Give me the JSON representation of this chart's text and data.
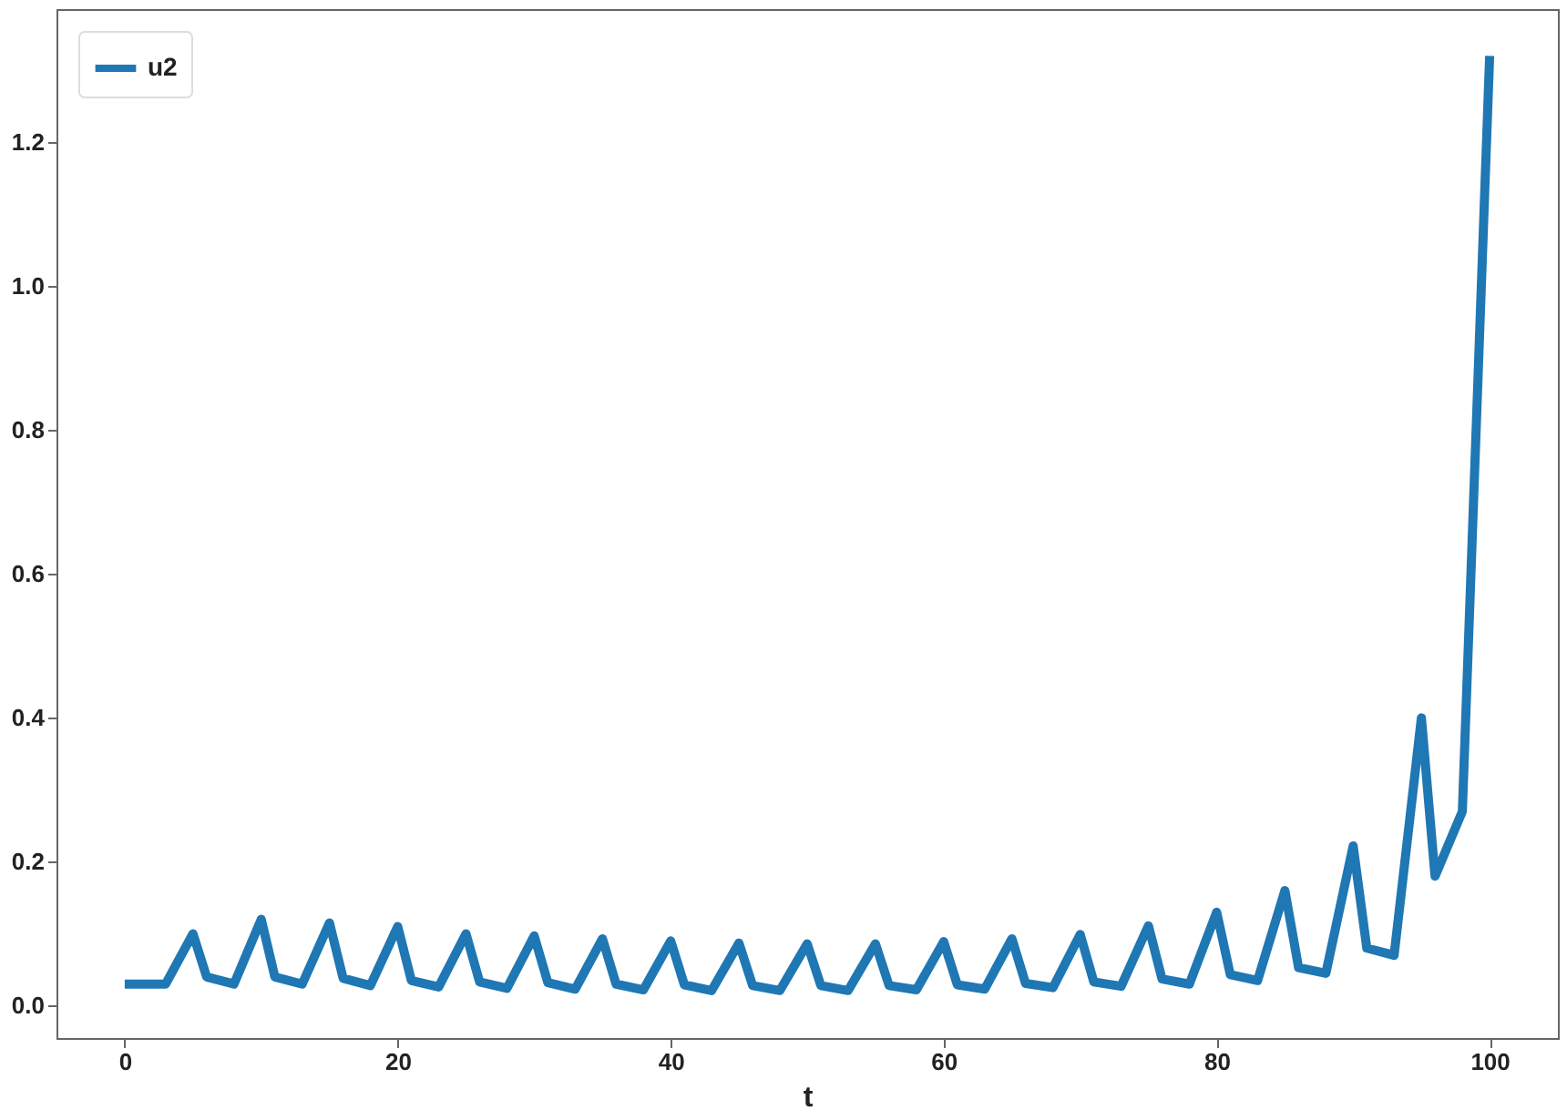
{
  "chart_data": {
    "type": "line",
    "xlabel": "t",
    "legend": "top left",
    "grid": false,
    "marker": "none",
    "line_style": "solid",
    "xlim": [
      -5,
      105
    ],
    "xticks": [
      0,
      20,
      40,
      60,
      80,
      100
    ],
    "ylim": [
      -0.045,
      1.385
    ],
    "yticks": [
      {
        "value": 0,
        "label": "0.0"
      },
      {
        "value": 0.2,
        "label": "0.2"
      },
      {
        "value": 0.4,
        "label": "0.4"
      },
      {
        "value": 0.6,
        "label": "0.6"
      },
      {
        "value": 0.8,
        "label": "0.8"
      },
      {
        "value": 1,
        "label": "1.0"
      },
      {
        "value": 1.2,
        "label": "1.2"
      }
    ],
    "x": [
      0,
      3,
      5,
      6,
      8,
      10,
      11,
      13,
      15,
      16,
      18,
      20,
      21,
      23,
      25,
      26,
      28,
      30,
      31,
      33,
      35,
      36,
      38,
      40,
      41,
      43,
      45,
      46,
      48,
      50,
      51,
      53,
      55,
      56,
      58,
      60,
      61,
      63,
      65,
      66,
      68,
      70,
      71,
      73,
      75,
      76,
      78,
      80,
      81,
      83,
      85,
      86,
      88,
      90,
      91,
      93,
      95,
      96,
      98,
      100
    ],
    "series": [
      {
        "name": "u2",
        "color": "#1f77b4",
        "values": [
          0.03,
          0.03,
          0.1,
          0.04,
          0.03,
          0.12,
          0.04,
          0.03,
          0.115,
          0.038,
          0.028,
          0.11,
          0.035,
          0.026,
          0.1,
          0.033,
          0.024,
          0.097,
          0.032,
          0.023,
          0.093,
          0.03,
          0.022,
          0.09,
          0.029,
          0.021,
          0.087,
          0.028,
          0.021,
          0.086,
          0.028,
          0.021,
          0.086,
          0.028,
          0.022,
          0.089,
          0.029,
          0.023,
          0.093,
          0.031,
          0.025,
          0.099,
          0.033,
          0.027,
          0.111,
          0.037,
          0.03,
          0.13,
          0.043,
          0.035,
          0.16,
          0.053,
          0.045,
          0.222,
          0.08,
          0.07,
          0.4,
          0.18,
          0.27,
          1.32
        ]
      }
    ]
  }
}
